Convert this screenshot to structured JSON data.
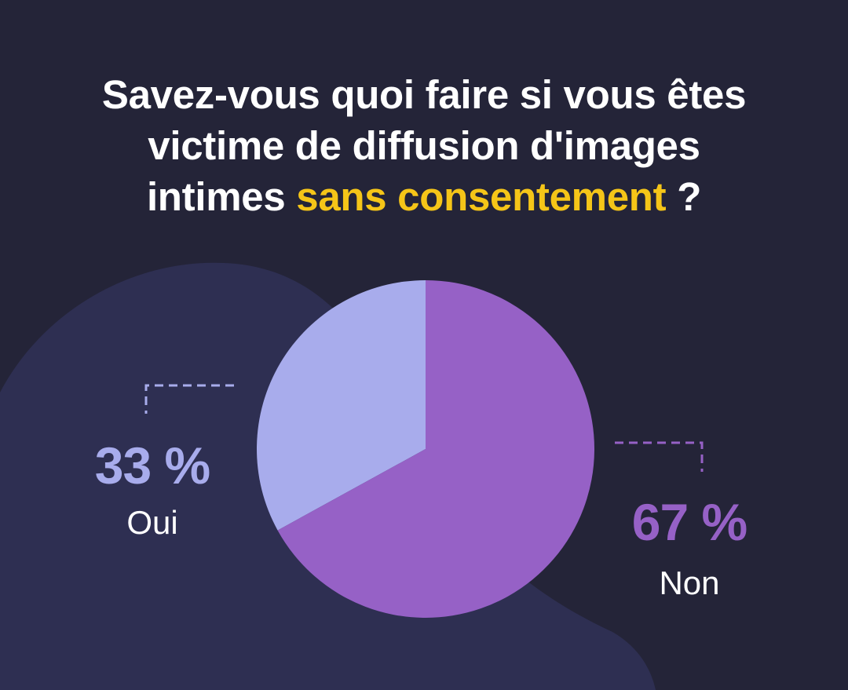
{
  "title": {
    "line1": "Savez-vous quoi faire si vous êtes",
    "line2": "victime de diffusion d'images",
    "line3_prefix": "intimes ",
    "line3_highlight": "sans consentement",
    "line3_suffix": " ?"
  },
  "colors": {
    "background": "#242438",
    "blob": "#2e2f52",
    "title_text": "#ffffff",
    "title_highlight": "#f5c518",
    "oui": "#a8acec",
    "non": "#9661c6",
    "category_text": "#ffffff"
  },
  "chart_data": {
    "type": "pie",
    "slices": [
      {
        "label": "Oui",
        "value": 33,
        "value_label": "33 %",
        "color": "#a8acec"
      },
      {
        "label": "Non",
        "value": 67,
        "value_label": "67 %",
        "color": "#9661c6"
      }
    ]
  }
}
